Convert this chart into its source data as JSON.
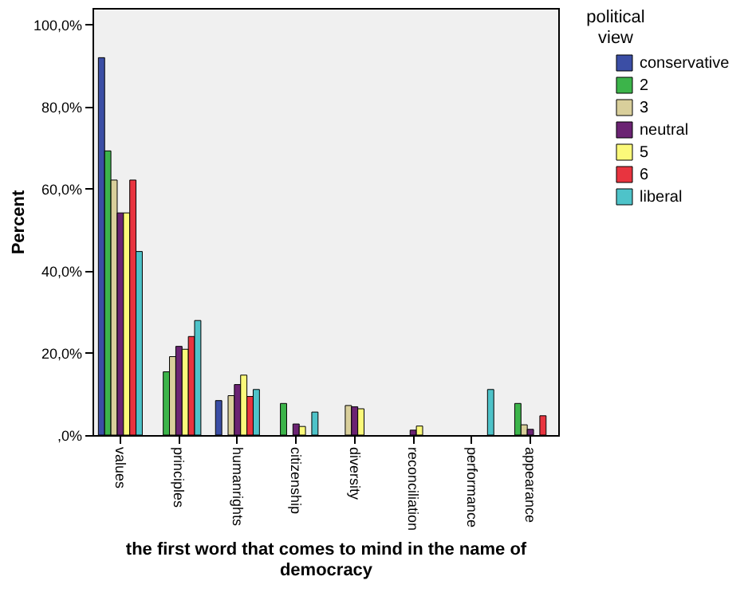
{
  "chart_data": {
    "type": "bar",
    "xlabel": "the first word that comes to mind in the name of democracy",
    "ylabel": "Percent",
    "legend_title": "political view",
    "categories": [
      "values",
      "principles",
      "humanrights",
      "citizenship",
      "diversity",
      "reconciliation",
      "performance",
      "appearance"
    ],
    "series": [
      {
        "name": "conservative",
        "color": "#3b4ea5",
        "values": [
          91.9,
          null,
          8.4,
          null,
          null,
          null,
          null,
          null
        ]
      },
      {
        "name": "2",
        "color": "#3cb44a",
        "values": [
          69.2,
          15.4,
          null,
          7.7,
          null,
          null,
          null,
          7.7
        ]
      },
      {
        "name": "3",
        "color": "#d9cf9b",
        "values": [
          62.1,
          19.1,
          9.6,
          null,
          7.2,
          null,
          null,
          2.5
        ]
      },
      {
        "name": "neutral",
        "color": "#6b2373",
        "values": [
          54.1,
          21.6,
          12.3,
          2.7,
          6.9,
          1.2,
          null,
          1.4
        ]
      },
      {
        "name": "5",
        "color": "#fbf97a",
        "values": [
          54.1,
          20.9,
          14.6,
          2.1,
          6.4,
          2.2,
          null,
          null
        ]
      },
      {
        "name": "6",
        "color": "#e8343f",
        "values": [
          62.1,
          24.0,
          9.4,
          null,
          null,
          null,
          null,
          4.7
        ]
      },
      {
        "name": "liberal",
        "color": "#4ec3c9",
        "values": [
          44.7,
          27.9,
          11.1,
          5.6,
          null,
          null,
          11.1,
          null
        ]
      }
    ],
    "ylim": [
      0,
      104
    ],
    "yticks": [
      {
        "value": 0,
        "label": ",0%"
      },
      {
        "value": 20,
        "label": "20,0%"
      },
      {
        "value": 40,
        "label": "40,0%"
      },
      {
        "value": 60,
        "label": "60,0%"
      },
      {
        "value": 80,
        "label": "80,0%"
      },
      {
        "value": 100,
        "label": "100,0%"
      }
    ],
    "grid": false,
    "legend": "right"
  }
}
